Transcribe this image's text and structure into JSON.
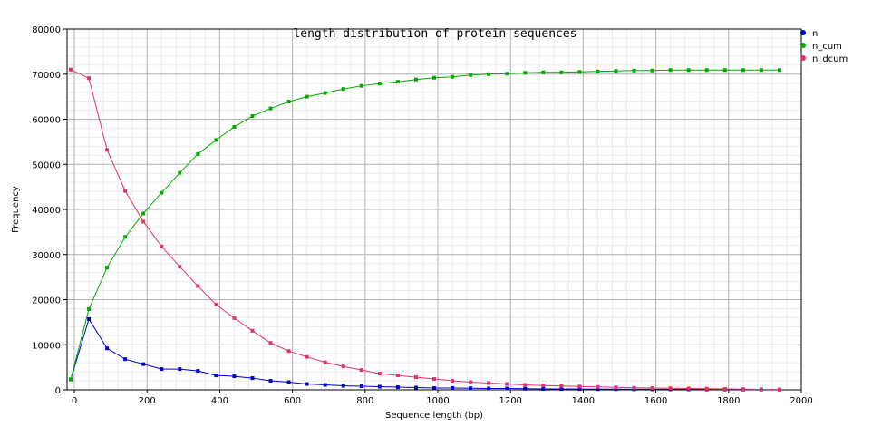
{
  "chart_data": {
    "type": "line",
    "title": "length distribution of protein sequences",
    "xlabel": "Sequence length (bp)",
    "ylabel": "Frequency",
    "xlim": [
      -20,
      2000
    ],
    "ylim": [
      0,
      80000
    ],
    "x_ticks": [
      0,
      200,
      400,
      600,
      800,
      1000,
      1200,
      1400,
      1600,
      1800,
      2000
    ],
    "y_ticks": [
      0,
      10000,
      20000,
      30000,
      40000,
      50000,
      60000,
      70000,
      80000
    ],
    "grid": true,
    "legend_position": "top-right",
    "x": [
      -10,
      40,
      90,
      140,
      190,
      240,
      290,
      340,
      390,
      440,
      490,
      540,
      590,
      640,
      690,
      740,
      790,
      840,
      890,
      940,
      990,
      1040,
      1090,
      1140,
      1190,
      1240,
      1290,
      1340,
      1390,
      1440,
      1490,
      1540,
      1590,
      1640,
      1690,
      1740,
      1790,
      1840,
      1890,
      1940
    ],
    "series": [
      {
        "name": "n",
        "color": "#0000cc",
        "values": [
          2300,
          15700,
          9200,
          6800,
          5700,
          4600,
          4600,
          4200,
          3200,
          3000,
          2600,
          2000,
          1700,
          1300,
          1100,
          900,
          800,
          700,
          600,
          500,
          400,
          400,
          350,
          300,
          300,
          250,
          200,
          200,
          180,
          160,
          150,
          130,
          120,
          110,
          100,
          90,
          80,
          70,
          60,
          50
        ]
      },
      {
        "name": "n_cum",
        "color": "#00aa00",
        "values": [
          2300,
          17900,
          27100,
          33900,
          39100,
          43700,
          48100,
          52300,
          55400,
          58300,
          60700,
          62400,
          63900,
          65000,
          65800,
          66700,
          67400,
          67900,
          68300,
          68800,
          69200,
          69400,
          69800,
          70000,
          70100,
          70300,
          70400,
          70400,
          70500,
          70600,
          70700,
          70800,
          70800,
          70900,
          70900,
          70900,
          70900,
          70900,
          70900,
          70900
        ]
      },
      {
        "name": "n_dcum",
        "color": "#e0336e",
        "values": [
          71000,
          69100,
          53200,
          44100,
          37300,
          31800,
          27300,
          23000,
          18900,
          15900,
          13100,
          10400,
          8600,
          7300,
          6100,
          5200,
          4400,
          3600,
          3200,
          2800,
          2400,
          2000,
          1700,
          1500,
          1300,
          1100,
          950,
          850,
          750,
          650,
          550,
          450,
          400,
          350,
          300,
          250,
          200,
          150,
          100,
          50
        ]
      }
    ]
  }
}
